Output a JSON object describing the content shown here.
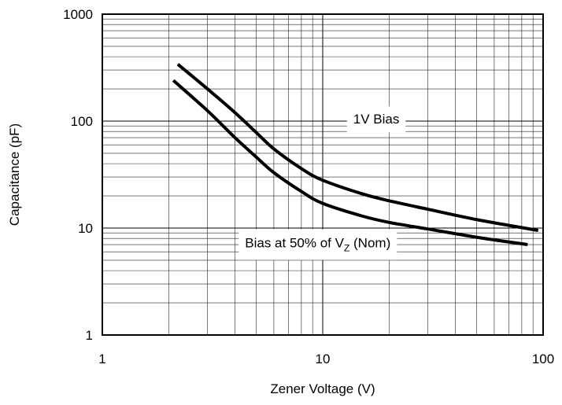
{
  "chart_data": {
    "type": "line",
    "title": "",
    "xlabel": "Zener Voltage (V)",
    "ylabel": "Capacitance (pF)",
    "x_scale": "log",
    "y_scale": "log",
    "xlim": [
      1,
      100
    ],
    "ylim": [
      1,
      1000
    ],
    "grid": true,
    "x_ticks": [
      {
        "value": 1,
        "label": "1"
      },
      {
        "value": 10,
        "label": "10"
      },
      {
        "value": 100,
        "label": "100"
      }
    ],
    "y_ticks": [
      {
        "value": 1,
        "label": "1"
      },
      {
        "value": 10,
        "label": "10"
      },
      {
        "value": 100,
        "label": "100"
      },
      {
        "value": 1000,
        "label": "1000"
      }
    ],
    "series": [
      {
        "x": [
          2.2,
          3,
          4,
          5,
          6,
          8,
          10,
          15,
          20,
          30,
          50,
          95
        ],
        "y": [
          340,
          200,
          120,
          78,
          55,
          36,
          28,
          21,
          18,
          15,
          12,
          9.5
        ]
      },
      {
        "x": [
          2.1,
          3,
          4,
          5,
          6,
          8,
          10,
          15,
          20,
          30,
          50,
          85
        ],
        "y": [
          240,
          125,
          70,
          46,
          33,
          22,
          17,
          13,
          11.3,
          9.8,
          8.2,
          7.0
        ]
      }
    ],
    "annotations": [
      {
        "text": "1V Bias",
        "x": 17.5,
        "y": 105
      },
      {
        "text_main": "Bias at 50% of V",
        "text_sub": "Z",
        "text_tail": " (Nom)",
        "x": 9.5,
        "y": 7.3
      }
    ]
  }
}
